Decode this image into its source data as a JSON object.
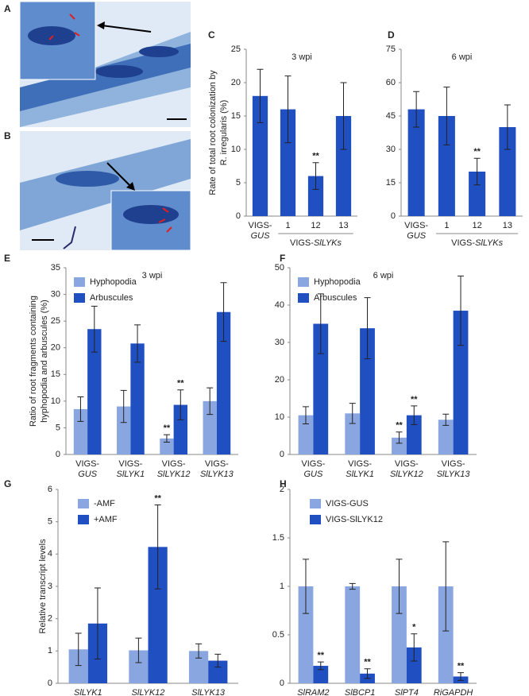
{
  "images": [
    {
      "panel": "A"
    },
    {
      "panel": "B"
    }
  ],
  "chart_data": [
    {
      "panel": "C",
      "type": "bar",
      "title": "3 wpi",
      "ylabel": [
        "Rate of total root colonization by",
        "R. irregularis (%)"
      ],
      "categories": [
        [
          "VIGS-",
          "GUS"
        ],
        [
          "1"
        ],
        [
          "12"
        ],
        [
          "13"
        ]
      ],
      "group_label": [
        "VIGS-",
        "SlLYKs"
      ],
      "series": [
        {
          "color": "#1f4fc1",
          "values": [
            18,
            16,
            6,
            15
          ],
          "errors": [
            4,
            5,
            2,
            5
          ],
          "sig": [
            null,
            null,
            "**",
            null
          ]
        }
      ],
      "ylim": [
        0,
        25
      ],
      "yticks": [
        0,
        5,
        10,
        15,
        20,
        25
      ]
    },
    {
      "panel": "D",
      "type": "bar",
      "title": "6 wpi",
      "categories": [
        [
          "VIGS-",
          "GUS"
        ],
        [
          "1"
        ],
        [
          "12"
        ],
        [
          "13"
        ]
      ],
      "group_label": [
        "VIGS-",
        "SlLYKs"
      ],
      "series": [
        {
          "color": "#1f4fc1",
          "values": [
            48,
            45,
            20,
            40
          ],
          "errors": [
            8,
            13,
            6,
            10
          ],
          "sig": [
            null,
            null,
            "**",
            null
          ]
        }
      ],
      "ylim": [
        0,
        75
      ],
      "yticks": [
        0,
        15,
        30,
        45,
        60,
        75
      ]
    },
    {
      "panel": "E",
      "type": "bar",
      "title": "3 wpi",
      "ylabel": [
        "Ratio of root fragments containing",
        "hyphopodia and arbuscules (%)"
      ],
      "categories": [
        [
          "VIGS-",
          "GUS"
        ],
        [
          "VIGS-",
          "SlLYK1"
        ],
        [
          "VIGS-",
          "SlLYK12"
        ],
        [
          "VIGS-",
          "SlLYK13"
        ]
      ],
      "series": [
        {
          "name": "Hyphopodia",
          "color": "#8aa6e0",
          "values": [
            8.5,
            9,
            3,
            10
          ],
          "errors": [
            2.3,
            3,
            0.7,
            2.5
          ],
          "sig": [
            null,
            null,
            "**",
            null
          ]
        },
        {
          "name": "Arbuscules",
          "color": "#1f4fc1",
          "values": [
            23.5,
            20.8,
            9.3,
            26.7
          ],
          "errors": [
            4.3,
            3.5,
            2.8,
            5.5
          ],
          "sig": [
            null,
            null,
            "**",
            null
          ]
        }
      ],
      "ylim": [
        0,
        35
      ],
      "yticks": [
        0,
        5,
        10,
        15,
        20,
        25,
        30,
        35
      ]
    },
    {
      "panel": "F",
      "type": "bar",
      "title": "6 wpi",
      "categories": [
        [
          "VIGS-",
          "GUS"
        ],
        [
          "VIGS-",
          "SlLYK1"
        ],
        [
          "VIGS-",
          "SlLYK12"
        ],
        [
          "VIGS-",
          "SlLYK13"
        ]
      ],
      "series": [
        {
          "name": "Hyphopodia",
          "color": "#8aa6e0",
          "values": [
            10.5,
            11,
            4.5,
            9.3
          ],
          "errors": [
            2.3,
            2.7,
            1.5,
            1.5
          ],
          "sig": [
            null,
            null,
            "**",
            null
          ]
        },
        {
          "name": "Arbuscules",
          "color": "#1f4fc1",
          "values": [
            35,
            33.8,
            10.5,
            38.5
          ],
          "errors": [
            8,
            8.2,
            2.5,
            9.3
          ],
          "sig": [
            null,
            null,
            "**",
            null
          ]
        }
      ],
      "ylim": [
        0,
        50
      ],
      "yticks": [
        0,
        10,
        20,
        30,
        40,
        50
      ]
    },
    {
      "panel": "G",
      "type": "bar",
      "ylabel": [
        "Relative transcript levels"
      ],
      "italic_categories": true,
      "categories": [
        [
          "SlLYK1"
        ],
        [
          "SlLYK12"
        ],
        [
          "SlLYK13"
        ]
      ],
      "series": [
        {
          "name": "-AMF",
          "color": "#8aa6e0",
          "values": [
            1.05,
            1.02,
            1.0
          ],
          "errors": [
            0.5,
            0.38,
            0.22
          ],
          "sig": [
            null,
            null,
            null
          ]
        },
        {
          "name": "+AMF",
          "color": "#1f4fc1",
          "values": [
            1.85,
            4.22,
            0.7
          ],
          "errors": [
            1.1,
            1.3,
            0.2
          ],
          "sig": [
            null,
            "**",
            null
          ]
        }
      ],
      "ylim": [
        0,
        6
      ],
      "yticks": [
        0,
        1,
        2,
        3,
        4,
        5,
        6
      ]
    },
    {
      "panel": "H",
      "type": "bar",
      "italic_categories": true,
      "categories": [
        [
          "SlRAM2"
        ],
        [
          "SlBCP1"
        ],
        [
          "SlPT4"
        ],
        [
          "RiGAPDH"
        ]
      ],
      "series": [
        {
          "name": "VIGS-GUS",
          "color": "#8aa6e0",
          "values": [
            1,
            1,
            1,
            1
          ],
          "errors": [
            0.28,
            0.03,
            0.28,
            0.46
          ],
          "sig": [
            null,
            null,
            null,
            null
          ]
        },
        {
          "name": "VIGS-SlLYK12",
          "color": "#1f4fc1",
          "values": [
            0.18,
            0.1,
            0.37,
            0.07
          ],
          "errors": [
            0.04,
            0.05,
            0.14,
            0.04
          ],
          "sig": [
            "**",
            "**",
            "*",
            "**"
          ]
        }
      ],
      "ylim": [
        0,
        2
      ],
      "yticks": [
        0,
        0.5,
        1,
        1.5,
        2
      ]
    }
  ]
}
